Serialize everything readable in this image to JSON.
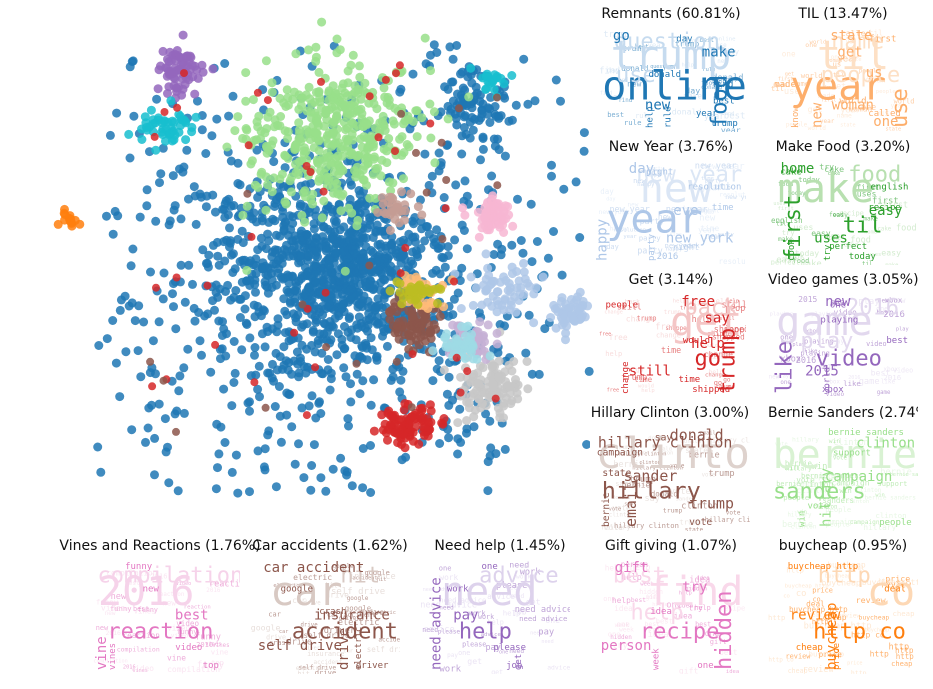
{
  "chart_data": [
    {
      "type": "scatter",
      "title": "",
      "xlabel": "",
      "ylabel": "",
      "grid": false,
      "axes_visible": false,
      "legend": "none",
      "description_series": "t-SNE style point clusters colored by topic",
      "clusters": [
        {
          "topic": "Remnants",
          "color": "#1f77b4",
          "share_pct": 60.81
        },
        {
          "topic": "TIL",
          "color": "#ffbb78",
          "share_pct": 13.47
        },
        {
          "topic": "New Year",
          "color": "#98df8a",
          "share_pct": 3.76
        },
        {
          "topic": "Make Food",
          "color": "#aec7e8",
          "share_pct": 3.2
        },
        {
          "topic": "Get",
          "color": "#d62728",
          "share_pct": 3.14
        },
        {
          "topic": "Video games",
          "color": "#c5b0d5",
          "share_pct": 3.05
        },
        {
          "topic": "Hillary Clinton",
          "color": "#8c564b",
          "share_pct": 3.0
        },
        {
          "topic": "Bernie Sanders",
          "color": "#c7c7c7",
          "share_pct": 2.74
        },
        {
          "topic": "Vines and Reactions",
          "color": "#f7b6d2",
          "share_pct": 1.76
        },
        {
          "topic": "Car accidents",
          "color": "#c49c94",
          "share_pct": 1.62
        },
        {
          "topic": "Need help",
          "color": "#9467bd",
          "share_pct": 1.45
        },
        {
          "topic": "Gift giving",
          "color": "#17becf",
          "share_pct": 1.07
        },
        {
          "topic": "buycheap",
          "color": "#ff7f0e",
          "share_pct": 0.95
        }
      ]
    },
    {
      "type": "wordcloud",
      "panels": [
        {
          "title": "Remnants (60.81%)",
          "color": "#1f77b4",
          "light": "#c6dbef",
          "words": [
            [
              "trump",
              "big"
            ],
            [
              "online",
              "big"
            ],
            [
              "question",
              "mid"
            ],
            [
              "food",
              "mid"
            ],
            [
              "use",
              "mid"
            ],
            [
              "go",
              "small"
            ],
            [
              "new",
              "small"
            ],
            [
              "make",
              "small"
            ],
            [
              "rule",
              "tiny"
            ],
            [
              "trump",
              "tiny"
            ],
            [
              "donald",
              "tiny"
            ],
            [
              "day",
              "tiny"
            ],
            [
              "year",
              "tiny"
            ],
            [
              "help",
              "tiny"
            ],
            [
              "best",
              "tiny"
            ],
            [
              "find",
              "tiny"
            ]
          ]
        },
        {
          "title": "TIL (13.47%)",
          "color": "#fdae6b",
          "light": "#fde0c5",
          "words": [
            [
              "til",
              "big"
            ],
            [
              "year",
              "big"
            ],
            [
              "name",
              "mid"
            ],
            [
              "use",
              "mid"
            ],
            [
              "people",
              "mid"
            ],
            [
              "state",
              "small"
            ],
            [
              "woman",
              "small"
            ],
            [
              "get",
              "small"
            ],
            [
              "new",
              "small"
            ],
            [
              "one",
              "small"
            ],
            [
              "us",
              "small"
            ],
            [
              "first",
              "tiny"
            ],
            [
              "called",
              "tiny"
            ],
            [
              "know",
              "tiny"
            ],
            [
              "world",
              "tiny"
            ],
            [
              "made",
              "tiny"
            ]
          ]
        },
        {
          "title": "New Year (3.76%)",
          "color": "#aec7e8",
          "light": "#dbe6f5",
          "words": [
            [
              "new",
              "big"
            ],
            [
              "year",
              "big"
            ],
            [
              "new year",
              "mid"
            ],
            [
              "happy",
              "small"
            ],
            [
              "eve",
              "small"
            ],
            [
              "day",
              "small"
            ],
            [
              "new york",
              "small"
            ],
            [
              "resolution",
              "tiny"
            ],
            [
              "party",
              "tiny"
            ],
            [
              "2016",
              "tiny"
            ],
            [
              "time",
              "tiny"
            ],
            [
              "night",
              "tiny"
            ]
          ]
        },
        {
          "title": "Make Food (3.20%)",
          "color": "#2ca02c",
          "light": "#b8e0b0",
          "words": [
            [
              "make",
              "big"
            ],
            [
              "til",
              "mid"
            ],
            [
              "food",
              "mid"
            ],
            [
              "first",
              "mid"
            ],
            [
              "easy",
              "small"
            ],
            [
              "home",
              "small"
            ],
            [
              "uses",
              "small"
            ],
            [
              "english",
              "tiny"
            ],
            [
              "try",
              "tiny"
            ],
            [
              "today",
              "tiny"
            ],
            [
              "recipe",
              "tiny"
            ],
            [
              "cake",
              "tiny"
            ],
            [
              "perfect",
              "tiny"
            ],
            [
              "cook",
              "tiny"
            ]
          ]
        },
        {
          "title": "Get (3.14%)",
          "color": "#d62728",
          "light": "#f4c6c6",
          "words": [
            [
              "get",
              "big"
            ],
            [
              "go",
              "mid"
            ],
            [
              "back",
              "mid"
            ],
            [
              "trump",
              "mid"
            ],
            [
              "help",
              "small"
            ],
            [
              "free",
              "small"
            ],
            [
              "still",
              "small"
            ],
            [
              "say",
              "small"
            ],
            [
              "change",
              "tiny"
            ],
            [
              "shipped",
              "tiny"
            ],
            [
              "would",
              "tiny"
            ],
            [
              "people",
              "tiny"
            ],
            [
              "time",
              "tiny"
            ]
          ]
        },
        {
          "title": "Video games (3.05%)",
          "color": "#9467bd",
          "light": "#e2d8ee",
          "words": [
            [
              "game",
              "big"
            ],
            [
              "video",
              "mid"
            ],
            [
              "2016",
              "mid"
            ],
            [
              "like",
              "mid"
            ],
            [
              "play",
              "mid"
            ],
            [
              "new",
              "small"
            ],
            [
              "2015",
              "small"
            ],
            [
              "playing",
              "tiny"
            ],
            [
              "world",
              "tiny"
            ],
            [
              "xbox",
              "tiny"
            ],
            [
              "best",
              "tiny"
            ],
            [
              "one",
              "tiny"
            ]
          ]
        },
        {
          "title": "Hillary Clinton (3.00%)",
          "color": "#8c564b",
          "light": "#ded2cd",
          "words": [
            [
              "clinton",
              "big"
            ],
            [
              "hillary",
              "mid"
            ],
            [
              "hillary clinton",
              "small"
            ],
            [
              "email",
              "small"
            ],
            [
              "sander",
              "small"
            ],
            [
              "donald",
              "small"
            ],
            [
              "trump",
              "small"
            ],
            [
              "campaign",
              "tiny"
            ],
            [
              "bernie",
              "tiny"
            ],
            [
              "vote",
              "tiny"
            ],
            [
              "state",
              "tiny"
            ],
            [
              "say",
              "tiny"
            ]
          ]
        },
        {
          "title": "Bernie Sanders (2.74%)",
          "color": "#98df8a",
          "light": "#d9f2d3",
          "words": [
            [
              "bernie",
              "big"
            ],
            [
              "sanders",
              "mid"
            ],
            [
              "clinton",
              "small"
            ],
            [
              "hillary",
              "small"
            ],
            [
              "campaign",
              "small"
            ],
            [
              "bernie sanders",
              "tiny"
            ],
            [
              "vote",
              "tiny"
            ],
            [
              "support",
              "tiny"
            ],
            [
              "win",
              "tiny"
            ],
            [
              "people",
              "tiny"
            ]
          ]
        },
        {
          "title": "Vines and Reactions (1.76%)",
          "color": "#e377c2",
          "light": "#f6d3ea",
          "words": [
            [
              "2016",
              "big"
            ],
            [
              "reaction",
              "mid"
            ],
            [
              "compilation",
              "mid"
            ],
            [
              "vine",
              "small"
            ],
            [
              "best",
              "small"
            ],
            [
              "funny",
              "tiny"
            ],
            [
              "video",
              "tiny"
            ],
            [
              "new",
              "tiny"
            ],
            [
              "vines",
              "tiny"
            ],
            [
              "top",
              "tiny"
            ]
          ]
        },
        {
          "title": "Car accidents (1.62%)",
          "color": "#8c564b",
          "light": "#d8c9c3",
          "words": [
            [
              "car",
              "big"
            ],
            [
              "accident",
              "mid"
            ],
            [
              "hit",
              "mid"
            ],
            [
              "drive",
              "small"
            ],
            [
              "insurance",
              "small"
            ],
            [
              "car accident",
              "small"
            ],
            [
              "self drive",
              "small"
            ],
            [
              "google",
              "tiny"
            ],
            [
              "electric",
              "tiny"
            ],
            [
              "driver",
              "tiny"
            ],
            [
              "crash",
              "tiny"
            ]
          ]
        },
        {
          "title": "Need help (1.45%)",
          "color": "#9467bd",
          "light": "#ddd2ec",
          "words": [
            [
              "need",
              "big"
            ],
            [
              "help",
              "mid"
            ],
            [
              "advice",
              "mid"
            ],
            [
              "need advice",
              "small"
            ],
            [
              "pay",
              "small"
            ],
            [
              "one",
              "tiny"
            ],
            [
              "please",
              "tiny"
            ],
            [
              "work",
              "tiny"
            ],
            [
              "get",
              "tiny"
            ],
            [
              "job",
              "tiny"
            ]
          ]
        },
        {
          "title": "Gift giving (1.07%)",
          "color": "#e377c2",
          "light": "#f9d8ea",
          "words": [
            [
              "find",
              "big"
            ],
            [
              "recipe",
              "mid"
            ],
            [
              "best",
              "mid"
            ],
            [
              "hidden",
              "mid"
            ],
            [
              "help",
              "mid"
            ],
            [
              "gift",
              "small"
            ],
            [
              "person",
              "small"
            ],
            [
              "try",
              "small"
            ],
            [
              "week",
              "tiny"
            ],
            [
              "one",
              "tiny"
            ],
            [
              "idea",
              "tiny"
            ]
          ]
        },
        {
          "title": "buycheap (0.95%)",
          "color": "#ff7f0e",
          "light": "#fdd8b5",
          "words": [
            [
              "co",
              "big"
            ],
            [
              "http co",
              "mid"
            ],
            [
              "http",
              "mid"
            ],
            [
              "buycheap",
              "small"
            ],
            [
              "review",
              "small"
            ],
            [
              "buycheap http",
              "tiny"
            ],
            [
              "cheap",
              "tiny"
            ],
            [
              "deal",
              "tiny"
            ],
            [
              "price",
              "tiny"
            ]
          ]
        }
      ]
    }
  ]
}
